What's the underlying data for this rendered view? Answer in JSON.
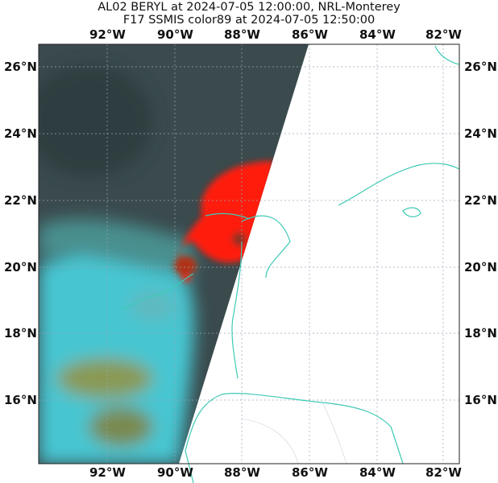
{
  "title": {
    "line1": "AL02 BERYL at 2024-07-05 12:00:00, NRL-Monterey",
    "line2": "F17 SSMIS color89 at 2024-07-05 12:50:00"
  },
  "map": {
    "lon_ticks": [
      "92°W",
      "90°W",
      "88°W",
      "86°W",
      "84°W",
      "82°W"
    ],
    "lat_ticks": [
      "26°N",
      "24°N",
      "22°N",
      "20°N",
      "18°N",
      "16°N"
    ],
    "extent": {
      "lon": [
        -94,
        -81.5
      ],
      "lat": [
        14.1,
        26.7
      ]
    },
    "colors": {
      "coastline": "#3ec9b4",
      "gridline": "#9aa6b8",
      "low_cloud": "#3fc5d3",
      "background_scene": "#3a4c50",
      "convection": "#ff1a10"
    }
  }
}
